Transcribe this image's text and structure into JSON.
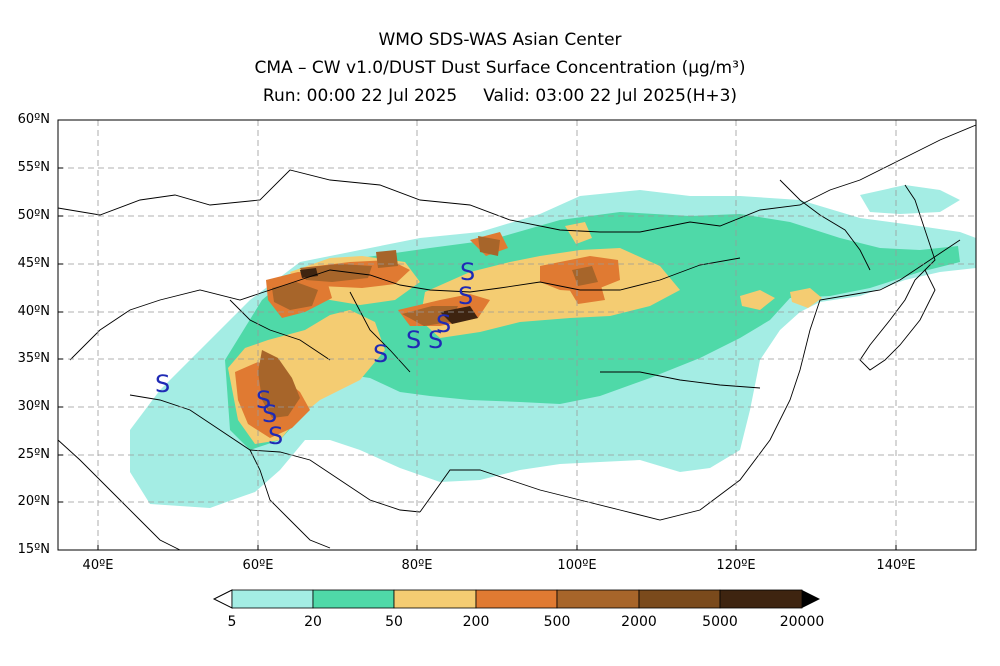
{
  "title": {
    "line1": "WMO SDS-WAS Asian Center",
    "line2": "CMA – CW v1.0/DUST Dust Surface Concentration (μg/m³)",
    "run": "Run: 00:00 22 Jul 2025",
    "valid": "Valid: 03:00 22 Jul 2025(H+3)"
  },
  "map": {
    "lon_range": [
      35,
      150
    ],
    "lat_range": [
      15,
      60
    ],
    "lat_labels": [
      "15ºN",
      "20ºN",
      "25ºN",
      "30ºN",
      "35ºN",
      "40ºN",
      "45ºN",
      "50ºN",
      "55ºN",
      "60ºN"
    ],
    "lon_labels": [
      "40ºE",
      "60ºE",
      "80ºE",
      "100ºE",
      "120ºE",
      "140ºE"
    ],
    "grid": true,
    "grid_style": "dashed",
    "marker_symbol": "S",
    "marker_color": "#1f2ab5"
  },
  "colorbar": {
    "labels": [
      "5",
      "20",
      "50",
      "200",
      "500",
      "2000",
      "5000",
      "20000"
    ],
    "colors": [
      "#a4ede4",
      "#4fd9a8",
      "#f4cc72",
      "#e07a32",
      "#a7652a",
      "#7a4a1c",
      "#3e2410"
    ]
  }
}
